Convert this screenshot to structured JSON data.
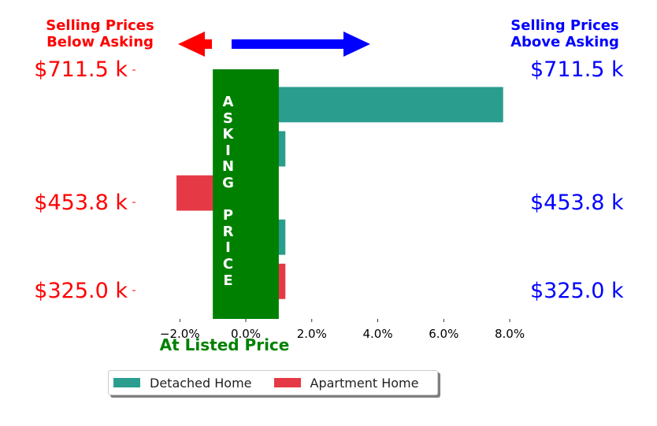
{
  "header": {
    "left_line1": "Selling Prices",
    "left_line2": "Below Asking",
    "right_line1": "Selling Prices",
    "right_line2": "Above Asking",
    "left_color": "#ff0000",
    "right_color": "#0000ff"
  },
  "center_band": {
    "label_letters": [
      "A",
      "S",
      "K",
      "I",
      "N",
      "G",
      "",
      "P",
      "R",
      "I",
      "C",
      "E"
    ],
    "color": "#008000"
  },
  "price_labels": [
    {
      "text": "$711.5 k"
    },
    {
      "text": "$453.8 k"
    },
    {
      "text": "$325.0 k"
    }
  ],
  "legend": {
    "items": [
      {
        "label": "Detached Home",
        "color": "#2a9d8f"
      },
      {
        "label": "Apartment Home",
        "color": "#e63946"
      }
    ]
  },
  "chart_data": {
    "type": "bar",
    "orientation": "horizontal",
    "xlabel": "At Listed Price",
    "xticks": [
      "−2.0%",
      "0.0%",
      "2.0%",
      "4.0%",
      "6.0%",
      "8.0%"
    ],
    "xtick_values": [
      -2,
      0,
      2,
      4,
      6,
      8
    ],
    "xlim": [
      -3.2,
      8.5
    ],
    "yticks": [
      "$711.5 k",
      "$453.8 k",
      "$325.0 k"
    ],
    "grid": false,
    "legend_position": "bottom",
    "band_range": [
      -1,
      1
    ],
    "bars": [
      {
        "series": "Detached Home",
        "value": 7.8
      },
      {
        "series": "Detached Home",
        "value": 1.2
      },
      {
        "series": "Apartment Home",
        "value": -2.1
      },
      {
        "series": "Detached Home",
        "value": 1.2
      },
      {
        "series": "Apartment Home",
        "value": 1.2
      }
    ]
  }
}
